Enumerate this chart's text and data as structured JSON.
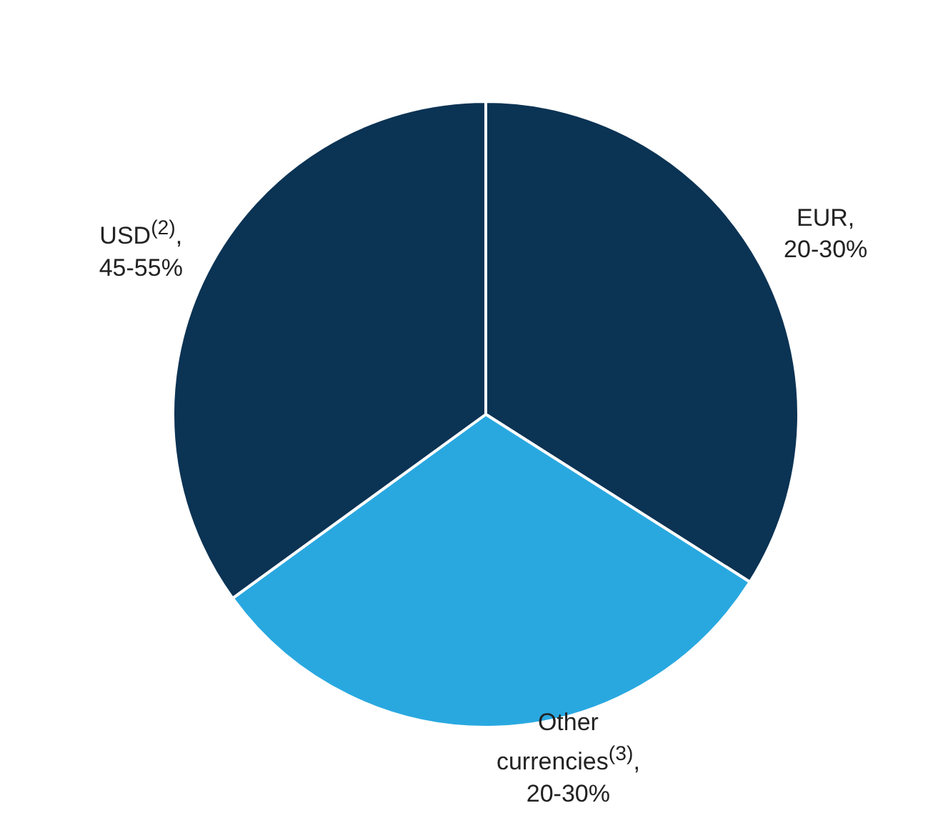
{
  "chart_data": {
    "type": "pie",
    "categories": [
      "EUR,\n20-30%",
      "Other\ncurrencies$^{(3)}$,\n20-30%",
      "USD$^{(2)}$,\n45-55%"
    ],
    "values": [
      34,
      31,
      35
    ],
    "colors": [
      "#0b3354",
      "#29a8e0",
      "#0b3354"
    ]
  }
}
